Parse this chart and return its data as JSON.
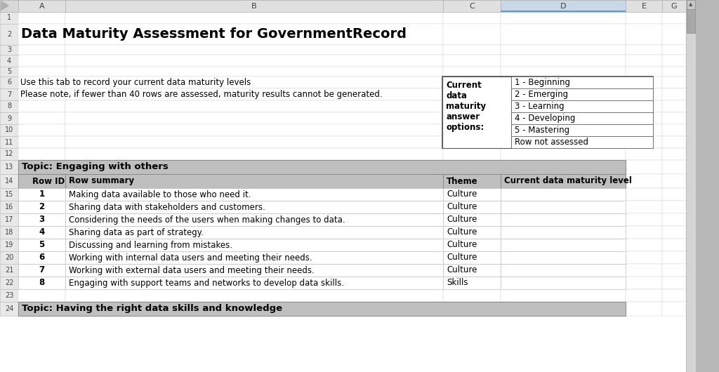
{
  "title": "Data Maturity Assessment for GovernmentRecord",
  "instruction_line1": "Use this tab to record your current data maturity levels",
  "instruction_line2": "Please note, if fewer than 40 rows are assessed, maturity results cannot be generated.",
  "answer_options_label": "Current\ndata\nmaturity\nanswer\noptions:",
  "answer_options": [
    "1 - Beginning",
    "2 - Emerging",
    "3 - Learning",
    "4 - Developing",
    "5 - Mastering",
    "Row not assessed"
  ],
  "topic_label": "Topic: Engaging with others",
  "col_headers": [
    "Row ID",
    "Row summary",
    "Theme",
    "Current data maturity level"
  ],
  "rows": [
    {
      "id": "1",
      "summary": "Making data available to those who need it.",
      "theme": "Culture"
    },
    {
      "id": "2",
      "summary": "Sharing data with stakeholders and customers.",
      "theme": "Culture"
    },
    {
      "id": "3",
      "summary": "Considering the needs of the users when making changes to data.",
      "theme": "Culture"
    },
    {
      "id": "4",
      "summary": "Sharing data as part of strategy.",
      "theme": "Culture"
    },
    {
      "id": "5",
      "summary": "Discussing and learning from mistakes.",
      "theme": "Culture"
    },
    {
      "id": "6",
      "summary": "Working with internal data users and meeting their needs.",
      "theme": "Culture"
    },
    {
      "id": "7",
      "summary": "Working with external data users and meeting their needs.",
      "theme": "Culture"
    },
    {
      "id": "8",
      "summary": "Engaging with support teams and networks to develop data skills.",
      "theme": "Skills"
    }
  ],
  "bottom_topic": "Topic: Having the right data skills and knowledge",
  "bg_color": "#ffffff",
  "col_header_bg": "#e0e0e0",
  "col_d_header_bg": "#c8d8e8",
  "col_d_header_border": "#5b9bd5",
  "row_num_bg": "#e8e8e8",
  "topic_bg": "#bfbfbf",
  "table_header_bg": "#bfbfbf",
  "scrollbar_bg": "#c0c0c0",
  "scrollbar_thumb": "#a0a0a0",
  "grid_light": "#d0d0d0",
  "grid_dark": "#888888"
}
